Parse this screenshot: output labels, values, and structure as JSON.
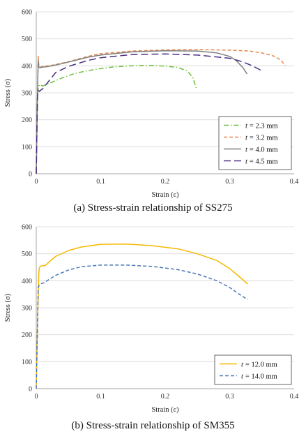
{
  "chart_data": [
    {
      "type": "line",
      "caption": "(a) Stress-strain relationship of SS275",
      "xlabel": "Strain (ε)",
      "ylabel": "Stress (σ)",
      "xlim": [
        0,
        0.4
      ],
      "ylim": [
        0,
        600
      ],
      "xticks": [
        "0",
        "0.1",
        "0.2",
        "0.3",
        "0.4"
      ],
      "yticks": [
        "0",
        "100",
        "200",
        "300",
        "400",
        "500",
        "600"
      ],
      "grid": "horizontal",
      "legend_position": "bottom-right",
      "series": [
        {
          "name": "t = 2.3 mm",
          "legend_var": "t",
          "legend_value": "= 2.3 mm",
          "color": "#6abf3a",
          "dash": "dashdot",
          "x": [
            0,
            0.001,
            0.002,
            0.003,
            0.005,
            0.01,
            0.02,
            0.04,
            0.06,
            0.08,
            0.1,
            0.12,
            0.14,
            0.16,
            0.18,
            0.2,
            0.22,
            0.235,
            0.243,
            0.248
          ],
          "y": [
            0,
            150,
            290,
            320,
            330,
            325,
            335,
            355,
            372,
            382,
            390,
            396,
            399,
            401,
            401,
            399,
            394,
            380,
            355,
            318
          ]
        },
        {
          "name": "t = 3.2 mm",
          "legend_var": "t",
          "legend_value": "= 3.2 mm",
          "color": "#e8864a",
          "dash": "dashed",
          "x": [
            0,
            0.0015,
            0.003,
            0.004,
            0.006,
            0.01,
            0.02,
            0.03,
            0.05,
            0.08,
            0.1,
            0.15,
            0.2,
            0.25,
            0.3,
            0.33,
            0.35,
            0.37,
            0.38,
            0.386
          ],
          "y": [
            0,
            250,
            435,
            400,
            395,
            398,
            400,
            405,
            415,
            435,
            445,
            455,
            459,
            460,
            458,
            455,
            448,
            435,
            420,
            400
          ]
        },
        {
          "name": "t = 4.0 mm",
          "legend_var": "t",
          "legend_value": "= 4.0 mm",
          "color": "#7f7f7f",
          "dash": "solid",
          "x": [
            0,
            0.0015,
            0.003,
            0.004,
            0.006,
            0.01,
            0.02,
            0.04,
            0.06,
            0.08,
            0.1,
            0.15,
            0.2,
            0.25,
            0.28,
            0.3,
            0.31,
            0.32,
            0.327
          ],
          "y": [
            0,
            250,
            420,
            395,
            393,
            395,
            398,
            408,
            420,
            432,
            440,
            452,
            456,
            455,
            448,
            435,
            420,
            395,
            370
          ]
        },
        {
          "name": "t = 4.5 mm",
          "legend_var": "t",
          "legend_value": "= 4.5 mm",
          "color": "#4b2e83",
          "dash": "longdash",
          "x": [
            0,
            0.001,
            0.002,
            0.003,
            0.005,
            0.007,
            0.01,
            0.02,
            0.03,
            0.05,
            0.08,
            0.1,
            0.15,
            0.2,
            0.25,
            0.3,
            0.32,
            0.335,
            0.345,
            0.352
          ],
          "y": [
            0,
            150,
            290,
            310,
            305,
            310,
            315,
            345,
            375,
            398,
            420,
            430,
            442,
            444,
            440,
            428,
            415,
            400,
            388,
            378
          ]
        }
      ]
    },
    {
      "type": "line",
      "caption": "(b) Stress-strain relationship of SM355",
      "xlabel": "Strain (ε)",
      "ylabel": "Stress (σ)",
      "xlim": [
        0,
        0.4
      ],
      "ylim": [
        0,
        600
      ],
      "xticks": [
        "0",
        "0.1",
        "0.2",
        "0.3",
        "0.4"
      ],
      "yticks": [
        "0",
        "100",
        "200",
        "300",
        "400",
        "500",
        "600"
      ],
      "grid": "horizontal",
      "legend_position": "bottom-right",
      "series": [
        {
          "name": "t = 12.0 mm",
          "legend_var": "t",
          "legend_value": "= 12.0 mm",
          "color": "#f5b800",
          "dash": "solid",
          "x": [
            0,
            0.002,
            0.004,
            0.005,
            0.007,
            0.01,
            0.015,
            0.02,
            0.03,
            0.05,
            0.07,
            0.1,
            0.14,
            0.18,
            0.22,
            0.25,
            0.28,
            0.3,
            0.315,
            0.328
          ],
          "y": [
            0,
            250,
            430,
            450,
            455,
            455,
            458,
            470,
            490,
            512,
            525,
            535,
            536,
            530,
            518,
            500,
            475,
            445,
            415,
            388
          ]
        },
        {
          "name": "t = 14.0 mm",
          "legend_var": "t",
          "legend_value": "= 14.0 mm",
          "color": "#4a78b8",
          "dash": "dashed",
          "x": [
            0,
            0.002,
            0.003,
            0.005,
            0.008,
            0.012,
            0.02,
            0.03,
            0.05,
            0.07,
            0.1,
            0.14,
            0.18,
            0.22,
            0.25,
            0.28,
            0.3,
            0.315,
            0.328
          ],
          "y": [
            0,
            250,
            375,
            385,
            390,
            392,
            405,
            420,
            440,
            452,
            458,
            458,
            453,
            441,
            425,
            400,
            375,
            350,
            330
          ]
        }
      ]
    }
  ]
}
